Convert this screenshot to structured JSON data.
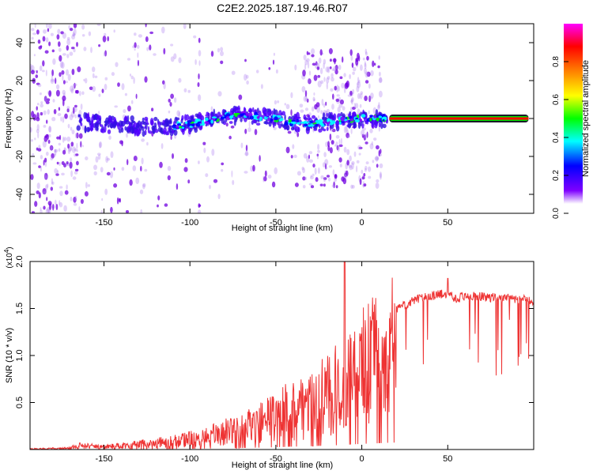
{
  "figure_title": "C2E2.2025.187.19.46.R07",
  "colors": {
    "signal_line": "#ff0000",
    "snr_line": "#ee3333",
    "frame": "#000000",
    "background": "#ffffff"
  },
  "chart_data": [
    {
      "type": "heatmap",
      "title": "",
      "xlabel": "Height of straight line (km)",
      "ylabel": "Frequency (Hz)",
      "xlim": [
        -193,
        100
      ],
      "ylim": [
        -50,
        50
      ],
      "xticks": [
        -150,
        -100,
        -50,
        0,
        50
      ],
      "yticks": [
        -40,
        -20,
        0,
        20,
        40
      ],
      "colorbar": {
        "label": "Normalized spectral amplitude",
        "range": [
          0,
          1
        ],
        "ticks": [
          0.0,
          0.2,
          0.4,
          0.6,
          0.8
        ],
        "tick_labels": [
          "0.0",
          "0.2",
          "0.4",
          "0.6",
          "0.8"
        ],
        "colormap": [
          "#ffffff",
          "#ffffff",
          "#7f00ff",
          "#0000ff",
          "#00ffff",
          "#00ff00",
          "#ffff00",
          "#ff8000",
          "#ff0000",
          "#ff00ff"
        ]
      },
      "scatter_regions": [
        {
          "x": [
            -193,
            -165
          ],
          "freq_spread": 50,
          "density": 1.0
        },
        {
          "x": [
            -165,
            -130
          ],
          "freq_spread": 50,
          "density": 0.35
        },
        {
          "x": [
            -130,
            -80
          ],
          "freq_spread": 50,
          "density": 0.2
        },
        {
          "x": [
            -80,
            -35
          ],
          "freq_spread": 35,
          "density": 0.15
        },
        {
          "x": [
            -35,
            12
          ],
          "freq_spread": 36,
          "density": 0.8
        }
      ],
      "central_trace": {
        "x": [
          -165,
          -150,
          -130,
          -110,
          -100,
          -90,
          -80,
          -70,
          -60,
          -50,
          -40,
          -30,
          -20,
          -10,
          0,
          10,
          15
        ],
        "freq": [
          -2,
          -3,
          -4,
          -4,
          -3,
          -1,
          1,
          2,
          1,
          0,
          -2,
          -3,
          -2,
          -1,
          0,
          0,
          0
        ]
      },
      "stable_line": {
        "x": [
          16,
          97
        ],
        "freq": 0
      }
    },
    {
      "type": "line",
      "title": "",
      "xlabel": "Height of straight line (km)",
      "ylabel": "SNR (10 * v/v)",
      "y_multiplier": "(x10^4)",
      "xlim": [
        -193,
        100
      ],
      "ylim": [
        0,
        2.0
      ],
      "xticks": [
        -150,
        -100,
        -50,
        0,
        50
      ],
      "yticks": [
        0.5,
        1.0,
        1.5,
        2.0
      ],
      "ytick_labels": [
        "0.5",
        "1.0",
        "1.5",
        "2.0"
      ],
      "series": [
        {
          "x": [
            -193,
            -170,
            -165,
            -150,
            -130,
            -110,
            -100,
            -90,
            -80,
            -70,
            -60,
            -50,
            -40,
            -30,
            -20,
            -15,
            -10,
            -5,
            0,
            10,
            20,
            30,
            40,
            50,
            55,
            60,
            70,
            80,
            90,
            100
          ],
          "values": [
            0.01,
            0.02,
            0.06,
            0.04,
            0.08,
            0.12,
            0.16,
            0.2,
            0.26,
            0.32,
            0.4,
            0.5,
            0.62,
            0.72,
            0.82,
            0.9,
            1.0,
            1.1,
            1.2,
            1.35,
            1.5,
            1.6,
            1.65,
            1.68,
            1.62,
            1.65,
            1.64,
            1.63,
            1.62,
            1.6
          ]
        }
      ]
    }
  ]
}
